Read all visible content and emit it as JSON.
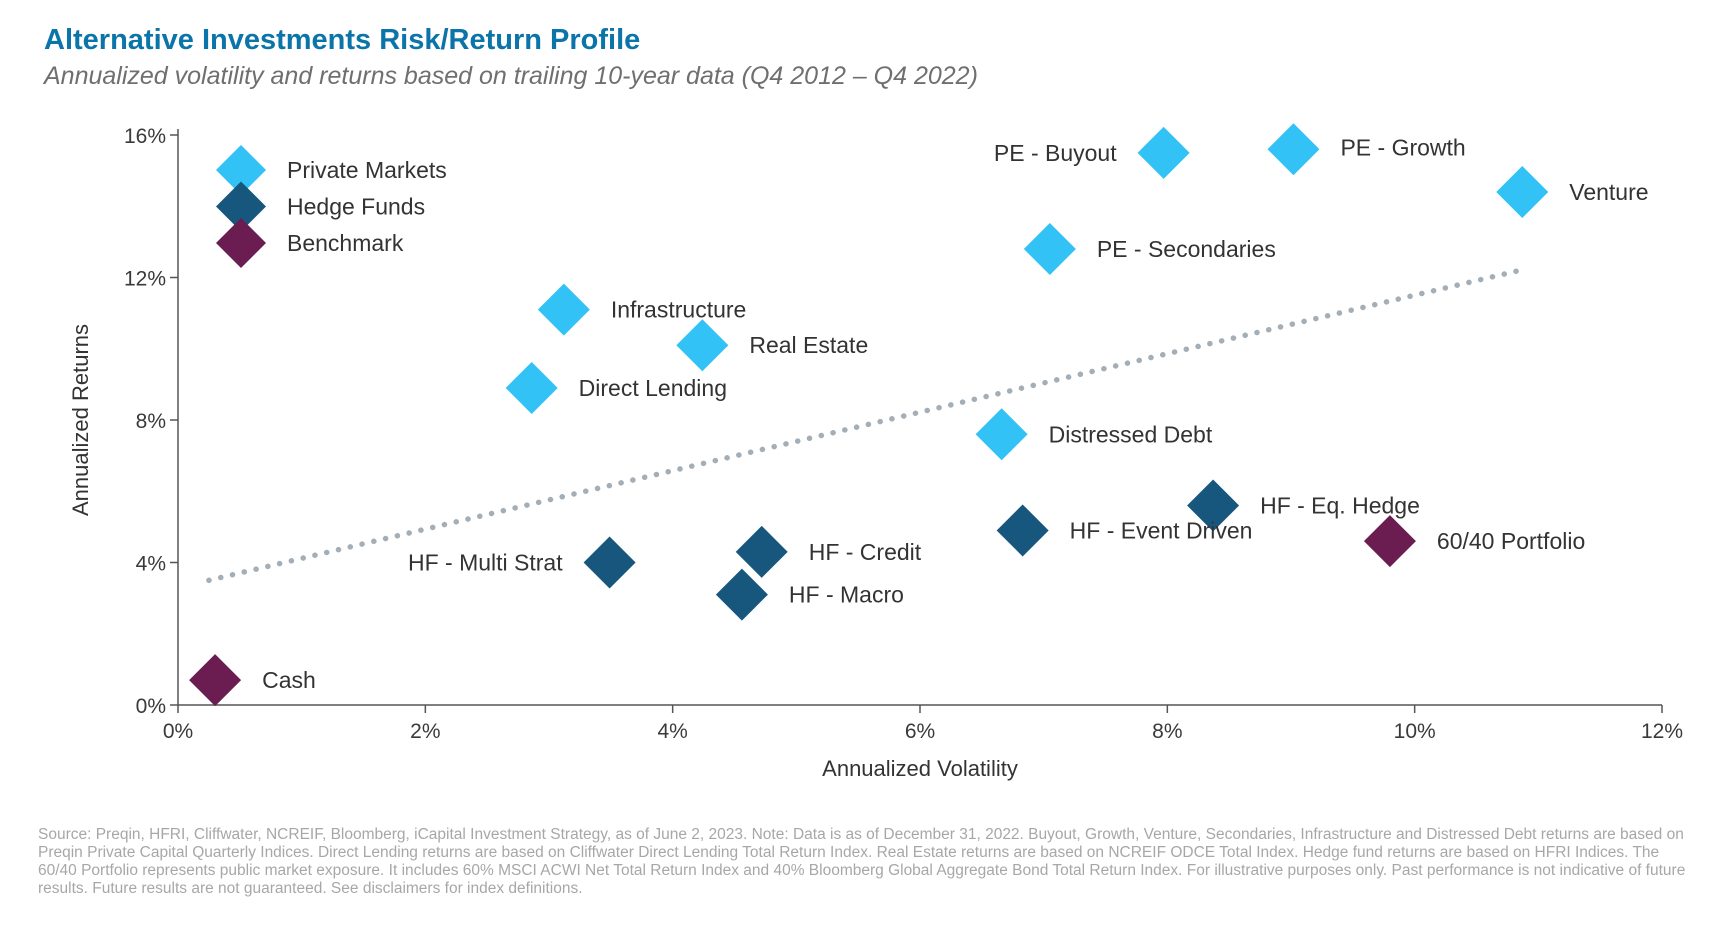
{
  "header": {
    "title": "Alternative Investments Risk/Return Profile",
    "subtitle": "Annualized volatility and returns based on trailing 10-year data (Q4 2012 – Q4 2022)"
  },
  "chart_data": {
    "type": "scatter",
    "xlabel": "Annualized Volatility",
    "ylabel": "Annualized Returns",
    "xlim": [
      0,
      12
    ],
    "ylim": [
      0,
      16
    ],
    "x_ticks": [
      "0%",
      "2%",
      "4%",
      "6%",
      "8%",
      "10%",
      "12%"
    ],
    "y_ticks": [
      "0%",
      "4%",
      "8%",
      "12%",
      "16%"
    ],
    "legend_position": "top-left",
    "legend": [
      {
        "label": "Private Markets",
        "category": "private"
      },
      {
        "label": "Hedge Funds",
        "category": "hedge"
      },
      {
        "label": "Benchmark",
        "category": "benchmark"
      }
    ],
    "colors": {
      "private": "#33c2f5",
      "hedge": "#17577e",
      "benchmark": "#6b1c51",
      "trend": "#a3aeb7"
    },
    "trendline": {
      "style": "dotted",
      "x": [
        0.25,
        10.85
      ],
      "y": [
        3.5,
        12.2
      ]
    },
    "points": [
      {
        "label": "PE - Buyout",
        "x": 7.97,
        "y": 15.5,
        "category": "private"
      },
      {
        "label": "PE - Growth",
        "x": 9.02,
        "y": 15.6,
        "category": "private"
      },
      {
        "label": "Venture",
        "x": 10.87,
        "y": 14.4,
        "category": "private"
      },
      {
        "label": "PE - Secondaries",
        "x": 7.05,
        "y": 12.8,
        "category": "private"
      },
      {
        "label": "Infrastructure",
        "x": 3.12,
        "y": 11.1,
        "category": "private"
      },
      {
        "label": "Real Estate",
        "x": 4.24,
        "y": 10.1,
        "category": "private"
      },
      {
        "label": "Direct Lending",
        "x": 2.86,
        "y": 8.9,
        "category": "private"
      },
      {
        "label": "Distressed Debt",
        "x": 6.66,
        "y": 7.6,
        "category": "private"
      },
      {
        "label": "HF - Eq. Hedge",
        "x": 8.37,
        "y": 5.6,
        "category": "hedge"
      },
      {
        "label": "HF - Event Driven",
        "x": 6.83,
        "y": 4.9,
        "category": "hedge"
      },
      {
        "label": "HF - Credit",
        "x": 4.72,
        "y": 4.3,
        "category": "hedge"
      },
      {
        "label": "HF - Multi Strat",
        "x": 3.49,
        "y": 4.0,
        "category": "hedge"
      },
      {
        "label": "HF - Macro",
        "x": 4.56,
        "y": 3.1,
        "category": "hedge"
      },
      {
        "label": "60/40 Portfolio",
        "x": 9.8,
        "y": 4.6,
        "category": "benchmark"
      },
      {
        "label": "Cash",
        "x": 0.3,
        "y": 0.7,
        "category": "benchmark"
      }
    ]
  },
  "footnote": "Source: Preqin, HFRI, Cliffwater, NCREIF, Bloomberg, iCapital Investment Strategy, as of June 2, 2023. Note: Data is as of December 31, 2022. Buyout, Growth, Venture, Secondaries, Infrastructure and Distressed Debt returns are based on Preqin Private Capital Quarterly Indices. Direct Lending returns are based on Cliffwater Direct Lending Total Return Index. Real Estate returns are based on NCREIF ODCE Total Index. Hedge fund returns are based on HFRI Indices. The 60/40 Portfolio represents public market exposure. It includes 60% MSCI ACWI Net Total Return Index and 40% Bloomberg Global Aggregate Bond Total Return Index. For illustrative purposes only. Past performance is not indicative of future results. Future results are not guaranteed. See disclaimers for index definitions."
}
